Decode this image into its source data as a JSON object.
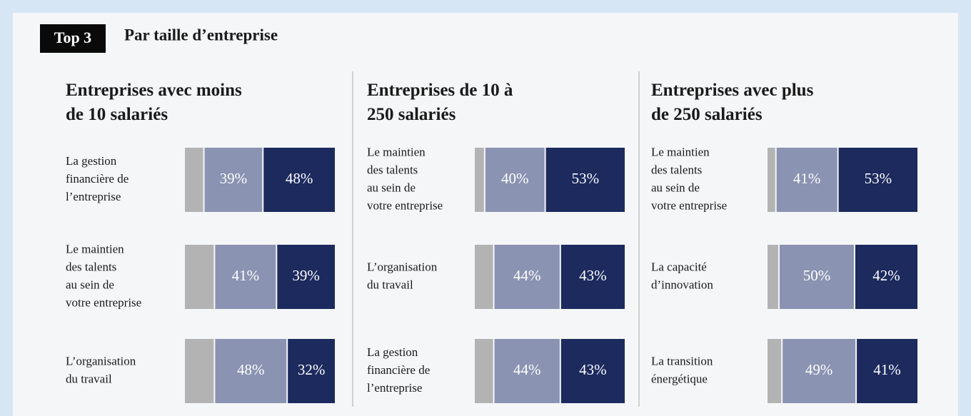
{
  "header": {
    "badge": "Top 3",
    "title": "Par taille d’entreprise"
  },
  "chart_data": [
    {
      "type": "stacked-bar",
      "title": "Entreprises avec moins\nde 10 salariés",
      "categories": [
        "La gestion\nfinancière de\nl’entreprise",
        "Le maintien\ndes talents\nau sein de\nvotre entreprise",
        "L’organisation\ndu travail"
      ],
      "xlim": [
        0,
        100
      ],
      "series": [
        {
          "color": "#b3b3b3",
          "values": [
            13,
            20,
            20
          ]
        },
        {
          "color": "#8a93b2",
          "values": [
            39,
            41,
            48
          ],
          "value_labels": [
            "39%",
            "41%",
            "48%"
          ]
        },
        {
          "color": "#1c2a5e",
          "values": [
            48,
            39,
            32
          ],
          "value_labels": [
            "48%",
            "39%",
            "32%"
          ]
        }
      ]
    },
    {
      "type": "stacked-bar",
      "title": "Entreprises de 10 à\n250 salariés",
      "categories": [
        "Le maintien\ndes talents\nau sein de\nvotre entreprise",
        "L’organisation\ndu travail",
        "La gestion\nfinancière de\nl’entreprise"
      ],
      "xlim": [
        0,
        100
      ],
      "series": [
        {
          "color": "#b3b3b3",
          "values": [
            7,
            13,
            13
          ]
        },
        {
          "color": "#8a93b2",
          "values": [
            40,
            44,
            44
          ],
          "value_labels": [
            "40%",
            "44%",
            "44%"
          ]
        },
        {
          "color": "#1c2a5e",
          "values": [
            53,
            43,
            43
          ],
          "value_labels": [
            "53%",
            "43%",
            "43%"
          ]
        }
      ]
    },
    {
      "type": "stacked-bar",
      "title": "Entreprises avec plus\nde 250 salariés",
      "categories": [
        "Le maintien\ndes talents\nau sein de\nvotre entreprise",
        "La capacité\nd’innovation",
        "La transition\nénergétique"
      ],
      "xlim": [
        0,
        100
      ],
      "series": [
        {
          "color": "#b3b3b3",
          "values": [
            6,
            8,
            10
          ]
        },
        {
          "color": "#8a93b2",
          "values": [
            41,
            50,
            49
          ],
          "value_labels": [
            "41%",
            "50%",
            "49%"
          ]
        },
        {
          "color": "#1c2a5e",
          "values": [
            53,
            42,
            41
          ],
          "value_labels": [
            "53%",
            "42%",
            "41%"
          ]
        }
      ]
    }
  ]
}
